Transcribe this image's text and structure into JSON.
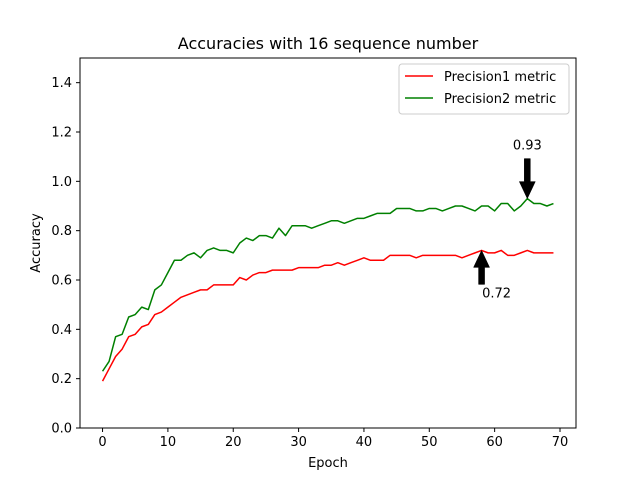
{
  "chart_data": {
    "type": "line",
    "title": "Accuracies with 16 sequence number",
    "xlabel": "Epoch",
    "ylabel": "Accuracy",
    "xlim": [
      -3.45,
      72.45
    ],
    "ylim": [
      0.0,
      1.5
    ],
    "xticks": [
      0,
      10,
      20,
      30,
      40,
      50,
      60,
      70
    ],
    "yticks": [
      0.0,
      0.2,
      0.4,
      0.6,
      0.8,
      1.0,
      1.2,
      1.4
    ],
    "xtick_labels": [
      "0",
      "10",
      "20",
      "30",
      "40",
      "50",
      "60",
      "70"
    ],
    "ytick_labels": [
      "0.0",
      "0.2",
      "0.4",
      "0.6",
      "0.8",
      "1.0",
      "1.2",
      "1.4"
    ],
    "legend_position": "upper right",
    "series": [
      {
        "name": "Precision1 metric",
        "color": "#ff0000",
        "x": [
          0,
          1,
          2,
          3,
          4,
          5,
          6,
          7,
          8,
          9,
          10,
          11,
          12,
          13,
          14,
          15,
          16,
          17,
          18,
          19,
          20,
          21,
          22,
          23,
          24,
          25,
          26,
          27,
          28,
          29,
          30,
          31,
          32,
          33,
          34,
          35,
          36,
          37,
          38,
          39,
          40,
          41,
          42,
          43,
          44,
          45,
          46,
          47,
          48,
          49,
          50,
          51,
          52,
          53,
          54,
          55,
          56,
          57,
          58,
          59,
          60,
          61,
          62,
          63,
          64,
          65,
          66,
          67,
          68,
          69
        ],
        "values": [
          0.19,
          0.24,
          0.29,
          0.32,
          0.37,
          0.38,
          0.41,
          0.42,
          0.46,
          0.47,
          0.49,
          0.51,
          0.53,
          0.54,
          0.55,
          0.56,
          0.56,
          0.58,
          0.58,
          0.58,
          0.58,
          0.61,
          0.6,
          0.62,
          0.63,
          0.63,
          0.64,
          0.64,
          0.64,
          0.64,
          0.65,
          0.65,
          0.65,
          0.65,
          0.66,
          0.66,
          0.67,
          0.66,
          0.67,
          0.68,
          0.69,
          0.68,
          0.68,
          0.68,
          0.7,
          0.7,
          0.7,
          0.7,
          0.69,
          0.7,
          0.7,
          0.7,
          0.7,
          0.7,
          0.7,
          0.69,
          0.7,
          0.71,
          0.72,
          0.71,
          0.71,
          0.72,
          0.7,
          0.7,
          0.71,
          0.72,
          0.71,
          0.71,
          0.71,
          0.71
        ]
      },
      {
        "name": "Precision2 metric",
        "color": "#008000",
        "x": [
          0,
          1,
          2,
          3,
          4,
          5,
          6,
          7,
          8,
          9,
          10,
          11,
          12,
          13,
          14,
          15,
          16,
          17,
          18,
          19,
          20,
          21,
          22,
          23,
          24,
          25,
          26,
          27,
          28,
          29,
          30,
          31,
          32,
          33,
          34,
          35,
          36,
          37,
          38,
          39,
          40,
          41,
          42,
          43,
          44,
          45,
          46,
          47,
          48,
          49,
          50,
          51,
          52,
          53,
          54,
          55,
          56,
          57,
          58,
          59,
          60,
          61,
          62,
          63,
          64,
          65,
          66,
          67,
          68,
          69
        ],
        "values": [
          0.23,
          0.27,
          0.37,
          0.38,
          0.45,
          0.46,
          0.49,
          0.48,
          0.56,
          0.58,
          0.63,
          0.68,
          0.68,
          0.7,
          0.71,
          0.69,
          0.72,
          0.73,
          0.72,
          0.72,
          0.71,
          0.75,
          0.77,
          0.76,
          0.78,
          0.78,
          0.77,
          0.81,
          0.78,
          0.82,
          0.82,
          0.82,
          0.81,
          0.82,
          0.83,
          0.84,
          0.84,
          0.83,
          0.84,
          0.85,
          0.85,
          0.86,
          0.87,
          0.87,
          0.87,
          0.89,
          0.89,
          0.89,
          0.88,
          0.88,
          0.89,
          0.89,
          0.88,
          0.89,
          0.9,
          0.9,
          0.89,
          0.88,
          0.9,
          0.9,
          0.88,
          0.91,
          0.91,
          0.88,
          0.9,
          0.93,
          0.91,
          0.91,
          0.9,
          0.91
        ]
      }
    ],
    "annotations": [
      {
        "text": "0.93",
        "x": 65,
        "y": 0.93,
        "arrow": "down"
      },
      {
        "text": "0.72",
        "x": 58,
        "y": 0.72,
        "arrow": "up"
      }
    ]
  }
}
